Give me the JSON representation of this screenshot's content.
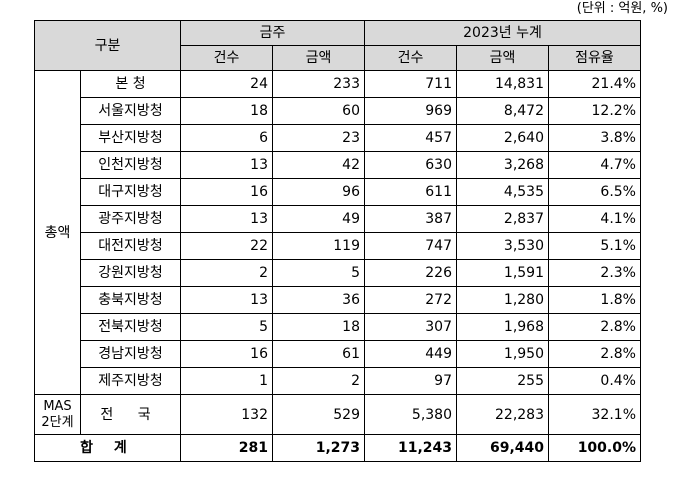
{
  "unit_note": "(단위 : 억원, %)",
  "header": {
    "category": "구분",
    "this_week": "금주",
    "cumulative": "2023년 누계",
    "count": "건수",
    "amount": "금액",
    "share": "점유율"
  },
  "group_total": "총액",
  "rows": [
    {
      "name": "본  청",
      "w_count": "24",
      "w_amount": "233",
      "c_count": "711",
      "c_amount": "14,831",
      "share": "21.4%"
    },
    {
      "name": "서울지방청",
      "w_count": "18",
      "w_amount": "60",
      "c_count": "969",
      "c_amount": "8,472",
      "share": "12.2%"
    },
    {
      "name": "부산지방청",
      "w_count": "6",
      "w_amount": "23",
      "c_count": "457",
      "c_amount": "2,640",
      "share": "3.8%"
    },
    {
      "name": "인천지방청",
      "w_count": "13",
      "w_amount": "42",
      "c_count": "630",
      "c_amount": "3,268",
      "share": "4.7%"
    },
    {
      "name": "대구지방청",
      "w_count": "16",
      "w_amount": "96",
      "c_count": "611",
      "c_amount": "4,535",
      "share": "6.5%"
    },
    {
      "name": "광주지방청",
      "w_count": "13",
      "w_amount": "49",
      "c_count": "387",
      "c_amount": "2,837",
      "share": "4.1%"
    },
    {
      "name": "대전지방청",
      "w_count": "22",
      "w_amount": "119",
      "c_count": "747",
      "c_amount": "3,530",
      "share": "5.1%"
    },
    {
      "name": "강원지방청",
      "w_count": "2",
      "w_amount": "5",
      "c_count": "226",
      "c_amount": "1,591",
      "share": "2.3%"
    },
    {
      "name": "충북지방청",
      "w_count": "13",
      "w_amount": "36",
      "c_count": "272",
      "c_amount": "1,280",
      "share": "1.8%"
    },
    {
      "name": "전북지방청",
      "w_count": "5",
      "w_amount": "18",
      "c_count": "307",
      "c_amount": "1,968",
      "share": "2.8%"
    },
    {
      "name": "경남지방청",
      "w_count": "16",
      "w_amount": "61",
      "c_count": "449",
      "c_amount": "1,950",
      "share": "2.8%"
    },
    {
      "name": "제주지방청",
      "w_count": "1",
      "w_amount": "2",
      "c_count": "97",
      "c_amount": "255",
      "share": "0.4%"
    }
  ],
  "mas": {
    "label_line1": "MAS",
    "label_line2": "2단계",
    "name": "전  국",
    "w_count": "132",
    "w_amount": "529",
    "c_count": "5,380",
    "c_amount": "22,283",
    "share": "32.1%"
  },
  "total": {
    "label": "합 계",
    "w_count": "281",
    "w_amount": "1,273",
    "c_count": "11,243",
    "c_amount": "69,440",
    "share": "100.0%"
  }
}
